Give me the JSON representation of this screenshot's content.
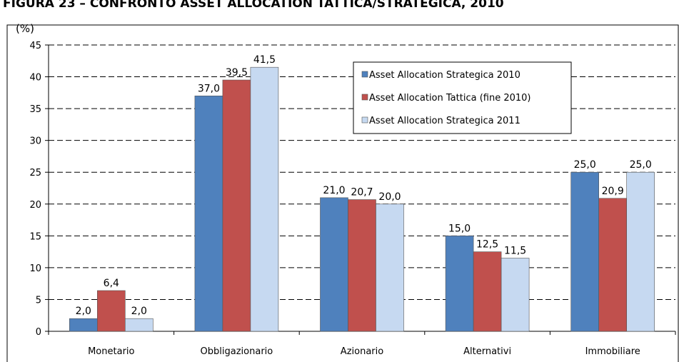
{
  "chart_data": {
    "type": "bar",
    "title": "FIGURA 23 – CONFRONTO ASSET ALLOCATION TATTICA/STRATEGICA, 2010",
    "y_label": "(%)",
    "categories": [
      "Monetario",
      "Obbligazionario",
      "Azionario",
      "Alternativi",
      "Immobiliare"
    ],
    "series": [
      {
        "name": "Asset Allocation Strategica 2010",
        "color": "#4f81bd",
        "values": [
          2.0,
          37.0,
          21.0,
          15.0,
          25.0
        ],
        "value_labels": [
          "2,0",
          "37,0",
          "21,0",
          "15,0",
          "25,0"
        ]
      },
      {
        "name": "Asset Allocation Tattica (fine 2010)",
        "color": "#c0504d",
        "values": [
          6.4,
          39.5,
          20.7,
          12.5,
          20.9
        ],
        "value_labels": [
          "6,4",
          "39,5",
          "20,7",
          "12,5",
          "20,9"
        ]
      },
      {
        "name": "Asset Allocation Strategica 2011",
        "color": "#c6d9f1",
        "values": [
          2.0,
          41.5,
          20.0,
          11.5,
          25.0
        ],
        "value_labels": [
          "2,0",
          "41,5",
          "20,0",
          "11,5",
          "25,0"
        ]
      }
    ],
    "ylim": [
      0,
      45
    ],
    "yticks": [
      0,
      5,
      10,
      15,
      20,
      25,
      30,
      35,
      40,
      45
    ],
    "grid": true,
    "legend": "upper right"
  }
}
